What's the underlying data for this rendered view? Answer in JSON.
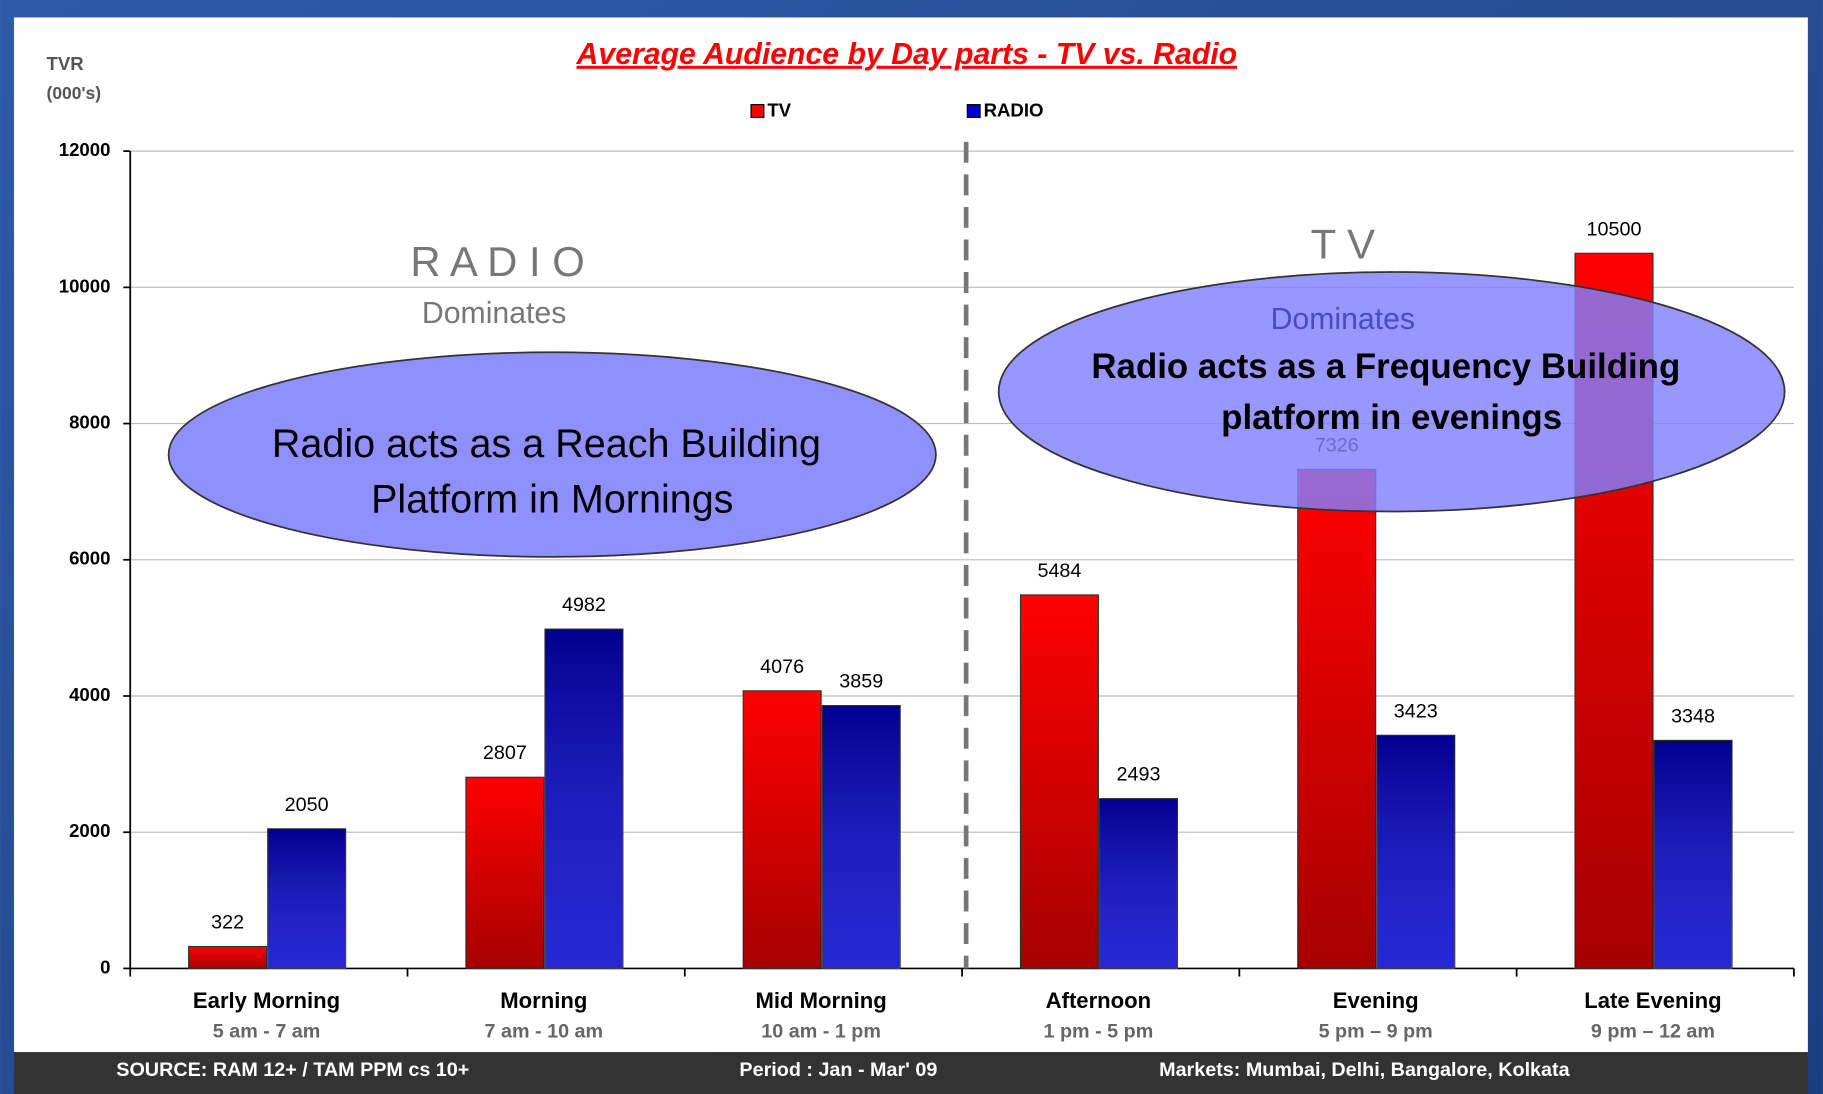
{
  "chart_data": {
    "type": "bar",
    "title": "Average Audience by Day parts - TV vs. Radio",
    "y_label": [
      "TVR",
      "(000's)"
    ],
    "categories": [
      "Early Morning",
      "Morning",
      "Mid Morning",
      "Afternoon",
      "Evening",
      "Late Evening"
    ],
    "time_ranges": [
      "5 am - 7 am",
      "7 am - 10 am",
      "10 am - 1 pm",
      "1 pm - 5 pm",
      "5 pm – 9 pm",
      "9 pm – 12 am"
    ],
    "series": [
      {
        "name": "TV",
        "color": "#ff0000",
        "values": [
          322,
          2807,
          4076,
          5484,
          7326,
          10500
        ]
      },
      {
        "name": "RADIO",
        "color": "#0000cc",
        "values": [
          2050,
          4982,
          3859,
          2493,
          3423,
          3348
        ]
      }
    ],
    "ylim": [
      0,
      12000
    ],
    "yticks": [
      0,
      2000,
      4000,
      6000,
      8000,
      10000,
      12000
    ],
    "grid": true,
    "legend": "top",
    "annotations": {
      "radio_heading": "R A D I O",
      "radio_sub": "Dominates",
      "radio_note": [
        "Radio acts as a Reach Building",
        "Platform in Mornings"
      ],
      "tv_heading": "T V",
      "tv_sub": "Dominates",
      "tv_note": [
        "Radio acts as a Frequency Building",
        "platform in evenings"
      ]
    },
    "footer": {
      "source": "SOURCE: RAM 12+ / TAM PPM cs 10+",
      "period": "Period : Jan - Mar' 09",
      "markets": "Markets: Mumbai, Delhi, Bangalore, Kolkata"
    }
  }
}
